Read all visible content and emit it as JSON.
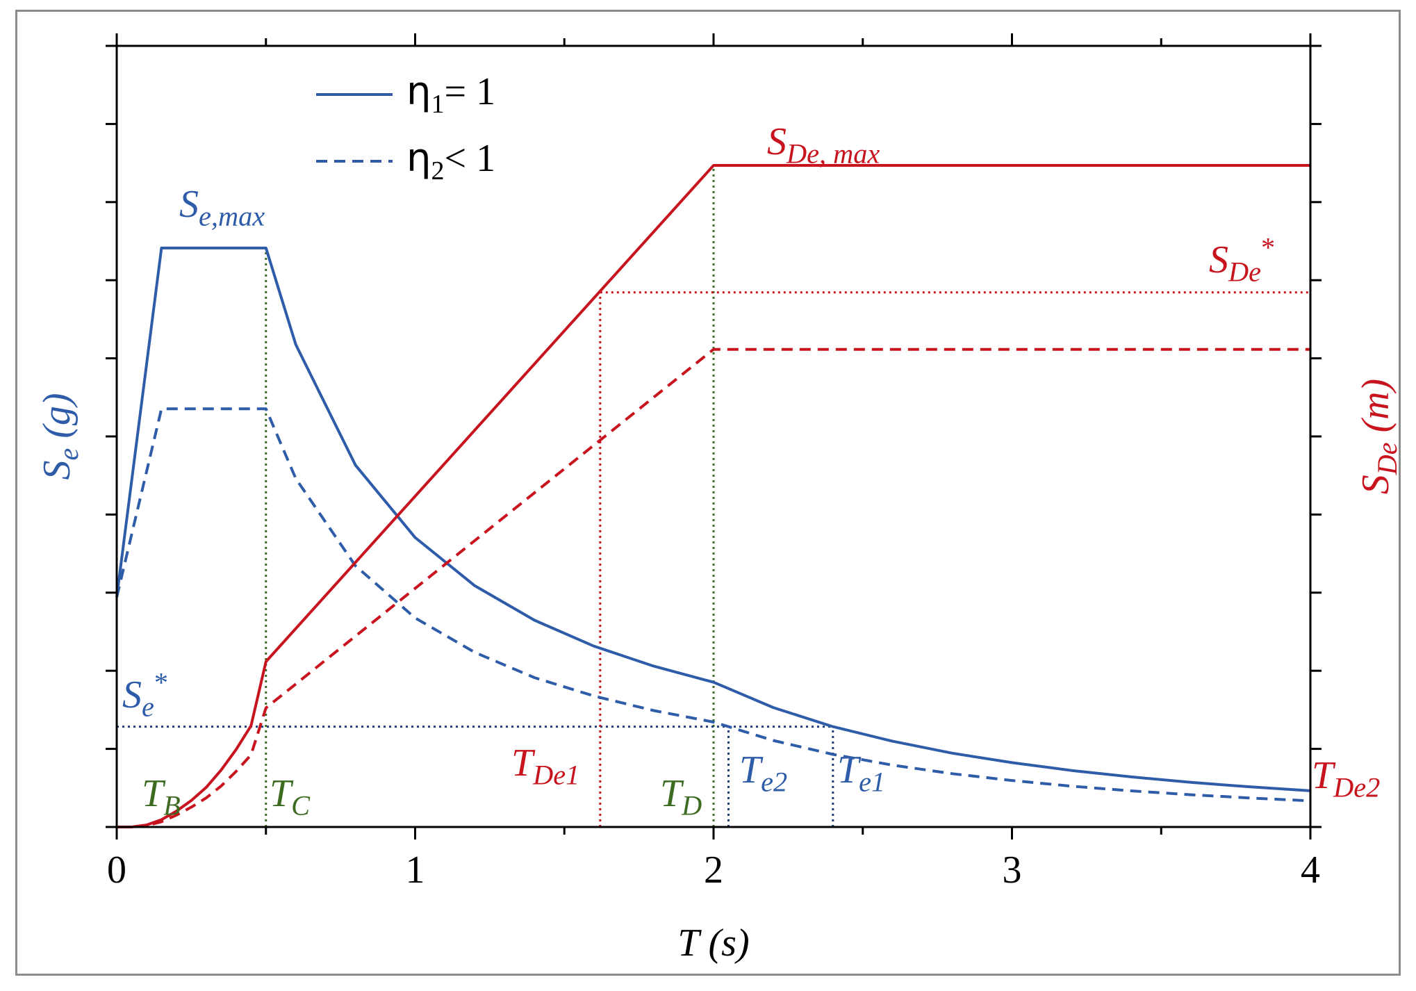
{
  "chart_data": {
    "type": "line",
    "xlabel": "T (s)",
    "ylabel_left": {
      "base": "S",
      "sub": "e",
      "rest": " (g)"
    },
    "ylabel_right": {
      "base": "S",
      "sub": "De",
      "rest": " (m)"
    },
    "xlim": [
      0,
      4
    ],
    "x_ticks": [
      0,
      1,
      2,
      3,
      4
    ],
    "x_tick_labels": [
      "0",
      "1",
      "2",
      "3",
      "4"
    ],
    "x_minor_step": 0.5,
    "ylim_left": [
      0,
      1.02
    ],
    "ylim_right": [
      0,
      1.0
    ],
    "grid": false,
    "legend_position": "top-left",
    "legend": [
      {
        "symbol": "η",
        "sub": "1",
        "rest": "= 1",
        "style": "solid"
      },
      {
        "symbol": "η",
        "sub": "2",
        "rest": "< 1",
        "style": "dashed"
      }
    ],
    "params": {
      "TB": 0.15,
      "TC": 0.5,
      "TD": 2.0,
      "Se_max": 0.756,
      "eta2": 0.5,
      "Se_PGA": 0.3,
      "SDe_max": 1.0
    },
    "series": [
      {
        "name": "η1 = 1 (Se)",
        "axis": "left",
        "color": "#2e5ca8",
        "dash": "solid",
        "x": [
          0,
          0.15,
          0.5,
          0.6,
          0.8,
          1.0,
          1.2,
          1.4,
          1.6,
          1.8,
          2.0,
          2.2,
          2.4,
          2.6,
          2.8,
          3.0,
          3.2,
          3.4,
          3.6,
          3.8,
          4.0
        ],
        "y": [
          0.3,
          0.756,
          0.756,
          0.63,
          0.4725,
          0.378,
          0.315,
          0.27,
          0.236,
          0.21,
          0.189,
          0.156,
          0.131,
          0.112,
          0.0964,
          0.084,
          0.0738,
          0.0654,
          0.0583,
          0.0524,
          0.0473
        ]
      },
      {
        "name": "η2 < 1 (Se)",
        "axis": "left",
        "color": "#2e5ca8",
        "dash": "dashed",
        "x": [
          0,
          0.15,
          0.5,
          0.6,
          0.8,
          1.0,
          1.2,
          1.4,
          1.6,
          1.8,
          2.0,
          2.2,
          2.4,
          2.6,
          2.8,
          3.0,
          3.2,
          3.4,
          3.6,
          3.8,
          4.0
        ],
        "y": [
          0.3,
          0.546,
          0.546,
          0.455,
          0.341,
          0.273,
          0.228,
          0.195,
          0.171,
          0.152,
          0.137,
          0.113,
          0.0948,
          0.0808,
          0.0696,
          0.0607,
          0.0533,
          0.0472,
          0.0421,
          0.0378,
          0.0341
        ]
      },
      {
        "name": "η1 = 1 (SDe)",
        "axis": "right",
        "color": "#c8141e",
        "dash": "solid",
        "x": [
          0,
          0.05,
          0.1,
          0.15,
          0.2,
          0.25,
          0.3,
          0.35,
          0.4,
          0.45,
          0.5,
          2.0,
          4.0
        ],
        "y": [
          0,
          0.0,
          0.003,
          0.011,
          0.024,
          0.04,
          0.06,
          0.086,
          0.117,
          0.153,
          0.25,
          1.0,
          1.0
        ]
      },
      {
        "name": "η2 < 1 (SDe)",
        "axis": "right",
        "color": "#c8141e",
        "dash": "dashed",
        "x": [
          0,
          0.05,
          0.1,
          0.15,
          0.2,
          0.25,
          0.3,
          0.35,
          0.4,
          0.45,
          0.5,
          2.0,
          4.0
        ],
        "y": [
          0,
          0.0,
          0.002,
          0.008,
          0.018,
          0.03,
          0.044,
          0.062,
          0.084,
          0.109,
          0.18,
          0.722,
          0.722
        ]
      }
    ],
    "reference_lines": [
      {
        "name": "TC-line",
        "x": 0.5,
        "y0_left": 0,
        "y1_left": 0.756,
        "color": "#3d6b22"
      },
      {
        "name": "TD-line",
        "x": 2.0,
        "y0_left": 0,
        "y1_right": 1.0,
        "color": "#3d6b22"
      },
      {
        "name": "Se-star-line",
        "y_left": 0.131,
        "x0": 0,
        "x1": 2.4,
        "color": "#1f3f7a"
      },
      {
        "name": "Te2-line",
        "x": 2.05,
        "y0_left": 0,
        "y1_left": 0.131,
        "color": "#1f3f7a"
      },
      {
        "name": "Te1-line",
        "x": 2.4,
        "y0_left": 0,
        "y1_left": 0.131,
        "color": "#1f3f7a"
      },
      {
        "name": "SDe-star-line",
        "y_right": 0.808,
        "x0": 1.62,
        "x1": 4.0,
        "color": "#c8141e"
      },
      {
        "name": "TDe1-line",
        "x": 1.62,
        "y0_left": 0,
        "y1_right": 0.808,
        "color": "#c8141e"
      },
      {
        "name": "TDe2-line",
        "x": 4.0,
        "y0_left": 0,
        "y1_right": 0.808,
        "color": "#c8141e"
      }
    ],
    "annotations": {
      "Se_max": {
        "base": "S",
        "sub": "e,max",
        "color": "#2e5ca8"
      },
      "SDe_max": {
        "base": "S",
        "sub": "De, max",
        "color": "#c8141e"
      },
      "SDe_star": {
        "base": "S",
        "sub": "De",
        "sup": "*",
        "color": "#c8141e"
      },
      "Se_star": {
        "base": "S",
        "sub": "e",
        "sup": "*",
        "color": "#2e5ca8"
      },
      "TB": {
        "base": "T",
        "sub": "B",
        "color": "#3d6b22"
      },
      "TC": {
        "base": "T",
        "sub": "C",
        "color": "#3d6b22"
      },
      "TD": {
        "base": "T",
        "sub": "D",
        "color": "#3d6b22"
      },
      "TDe1": {
        "base": "T",
        "sub": "De1",
        "color": "#c8141e"
      },
      "TDe2": {
        "base": "T",
        "sub": "De2",
        "color": "#c8141e"
      },
      "Te2": {
        "base": "T",
        "sub": "e2",
        "color": "#2e5ca8"
      },
      "Te1": {
        "base": "T",
        "sub": "e1",
        "color": "#2e5ca8"
      }
    }
  }
}
